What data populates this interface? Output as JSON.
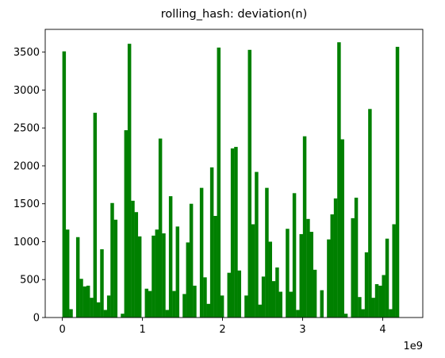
{
  "chart_data": {
    "type": "bar",
    "title": "rolling_hash: deviation(n)",
    "xlabel": "",
    "ylabel": "",
    "color": "#008000",
    "x_offset_label": "1e9",
    "x_bin_start": 0,
    "x_bin_width": 0.0429,
    "xlim": [
      -0.214,
      4.5
    ],
    "ylim": [
      0,
      3800
    ],
    "x_ticks": [
      {
        "value": 0,
        "label": "0"
      },
      {
        "value": 1,
        "label": "1"
      },
      {
        "value": 2,
        "label": "2"
      },
      {
        "value": 3,
        "label": "3"
      },
      {
        "value": 4,
        "label": "4"
      }
    ],
    "y_ticks": [
      {
        "value": 0,
        "label": "0"
      },
      {
        "value": 500,
        "label": "500"
      },
      {
        "value": 1000,
        "label": "1000"
      },
      {
        "value": 1500,
        "label": "1500"
      },
      {
        "value": 2000,
        "label": "2000"
      },
      {
        "value": 2500,
        "label": "2500"
      },
      {
        "value": 3000,
        "label": "3000"
      },
      {
        "value": 3500,
        "label": "3500"
      }
    ],
    "grid": false,
    "values": [
      3510,
      1160,
      110,
      0,
      1060,
      510,
      410,
      420,
      260,
      2700,
      200,
      900,
      100,
      290,
      1510,
      1290,
      0,
      50,
      2470,
      3610,
      1540,
      1390,
      1070,
      0,
      380,
      350,
      1080,
      1160,
      2360,
      1110,
      100,
      1600,
      350,
      1200,
      0,
      310,
      990,
      1500,
      420,
      0,
      1710,
      530,
      180,
      1980,
      1340,
      3560,
      290,
      0,
      590,
      2230,
      2250,
      620,
      0,
      290,
      3530,
      1230,
      1920,
      170,
      540,
      1710,
      1000,
      480,
      660,
      340,
      0,
      1170,
      340,
      1640,
      100,
      1100,
      2390,
      1300,
      1130,
      630,
      0,
      360,
      0,
      1030,
      1360,
      1570,
      3630,
      2350,
      50,
      0,
      1310,
      1580,
      270,
      110,
      860,
      2750,
      260,
      440,
      420,
      560,
      1040,
      110,
      1230,
      3570
    ]
  }
}
